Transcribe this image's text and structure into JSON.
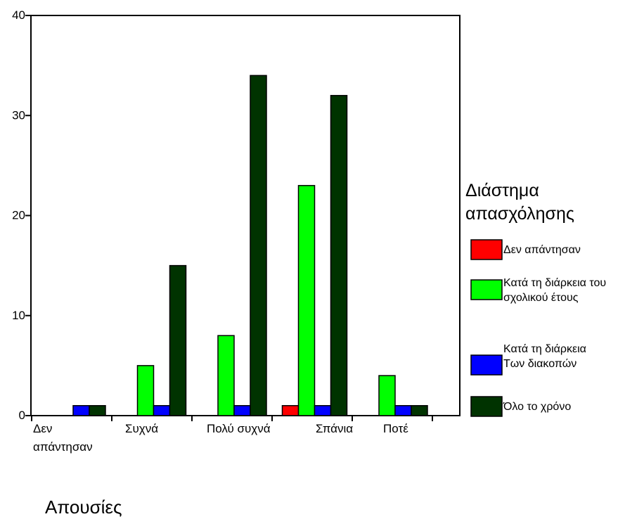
{
  "chart_data": {
    "type": "bar",
    "xlabel": "Απουσίες",
    "categories": [
      [
        "Δεν",
        "απάντησαν"
      ],
      [
        "Συχνά"
      ],
      [
        "Πολύ συχνά"
      ],
      [
        "Σπάνια"
      ],
      [
        "Ποτέ"
      ]
    ],
    "ylim": [
      0,
      40
    ],
    "yticks": [
      0,
      10,
      20,
      30,
      40
    ],
    "grid": false,
    "legend": {
      "title": [
        "Διάστημα",
        "απασχόλησης"
      ],
      "position": "right"
    },
    "series": [
      {
        "name": [
          "Δεν απάντησαν"
        ],
        "color": "#ff0000",
        "values": [
          0,
          0,
          0,
          1,
          0
        ]
      },
      {
        "name": [
          "Κατά τη διάρκεια του",
          "σχολικού έτους"
        ],
        "color": "#00ff00",
        "values": [
          0,
          5,
          8,
          23,
          4
        ]
      },
      {
        "name": [
          "Κατά τη διάρκεια",
          "Των διακοπών"
        ],
        "color": "#0000ff",
        "values": [
          1,
          1,
          1,
          1,
          1
        ]
      },
      {
        "name": [
          "Όλο το χρόνο"
        ],
        "color": "#003300",
        "values": [
          1,
          15,
          34,
          32,
          1
        ]
      }
    ]
  }
}
